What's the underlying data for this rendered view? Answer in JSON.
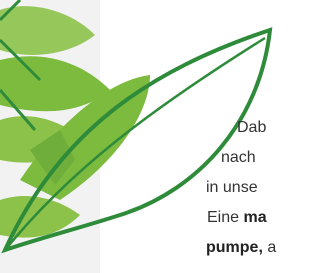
{
  "text": {
    "lines": [
      "Dab",
      "nach",
      "in unse",
      {
        "normal": "Eine ",
        "bold": "ma"
      },
      {
        "bold": "pumpe,",
        "normal": " a"
      }
    ]
  }
}
